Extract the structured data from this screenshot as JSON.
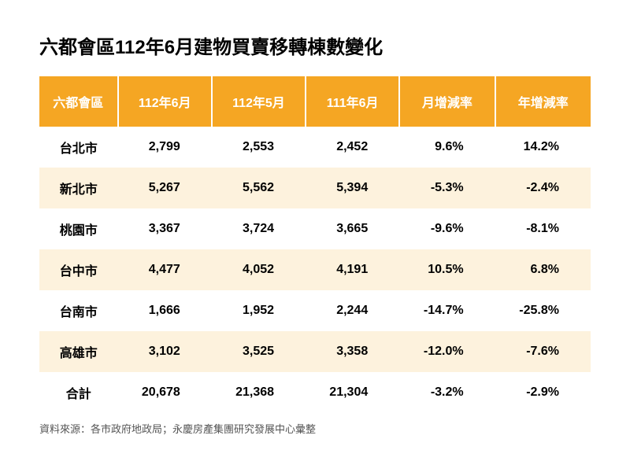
{
  "title": "六都會區112年6月建物買賣移轉棟數變化",
  "table": {
    "columns": [
      "六都會區",
      "112年6月",
      "112年5月",
      "111年6月",
      "月增減率",
      "年增減率"
    ],
    "rows": [
      [
        "台北市",
        "2,799",
        "2,553",
        "2,452",
        "9.6%",
        "14.2%"
      ],
      [
        "新北市",
        "5,267",
        "5,562",
        "5,394",
        "-5.3%",
        "-2.4%"
      ],
      [
        "桃園市",
        "3,367",
        "3,724",
        "3,665",
        "-9.6%",
        "-8.1%"
      ],
      [
        "台中市",
        "4,477",
        "4,052",
        "4,191",
        "10.5%",
        "6.8%"
      ],
      [
        "台南市",
        "1,666",
        "1,952",
        "2,244",
        "-14.7%",
        "-25.8%"
      ],
      [
        "高雄市",
        "3,102",
        "3,525",
        "3,358",
        "-12.0%",
        "-7.6%"
      ],
      [
        "合計",
        "20,678",
        "21,368",
        "21,304",
        "-3.2%",
        "-2.9%"
      ]
    ],
    "header_bg": "#f5a623",
    "header_text_color": "#ffffff",
    "row_even_bg": "#ffffff",
    "row_odd_bg": "#fdf2dd",
    "cell_text_color": "#000000",
    "title_fontsize": 24,
    "header_fontsize": 16,
    "cell_fontsize": 16
  },
  "source": "資料來源：各市政府地政局；永慶房產集團研究發展中心彙整",
  "background_color": "#ffffff"
}
